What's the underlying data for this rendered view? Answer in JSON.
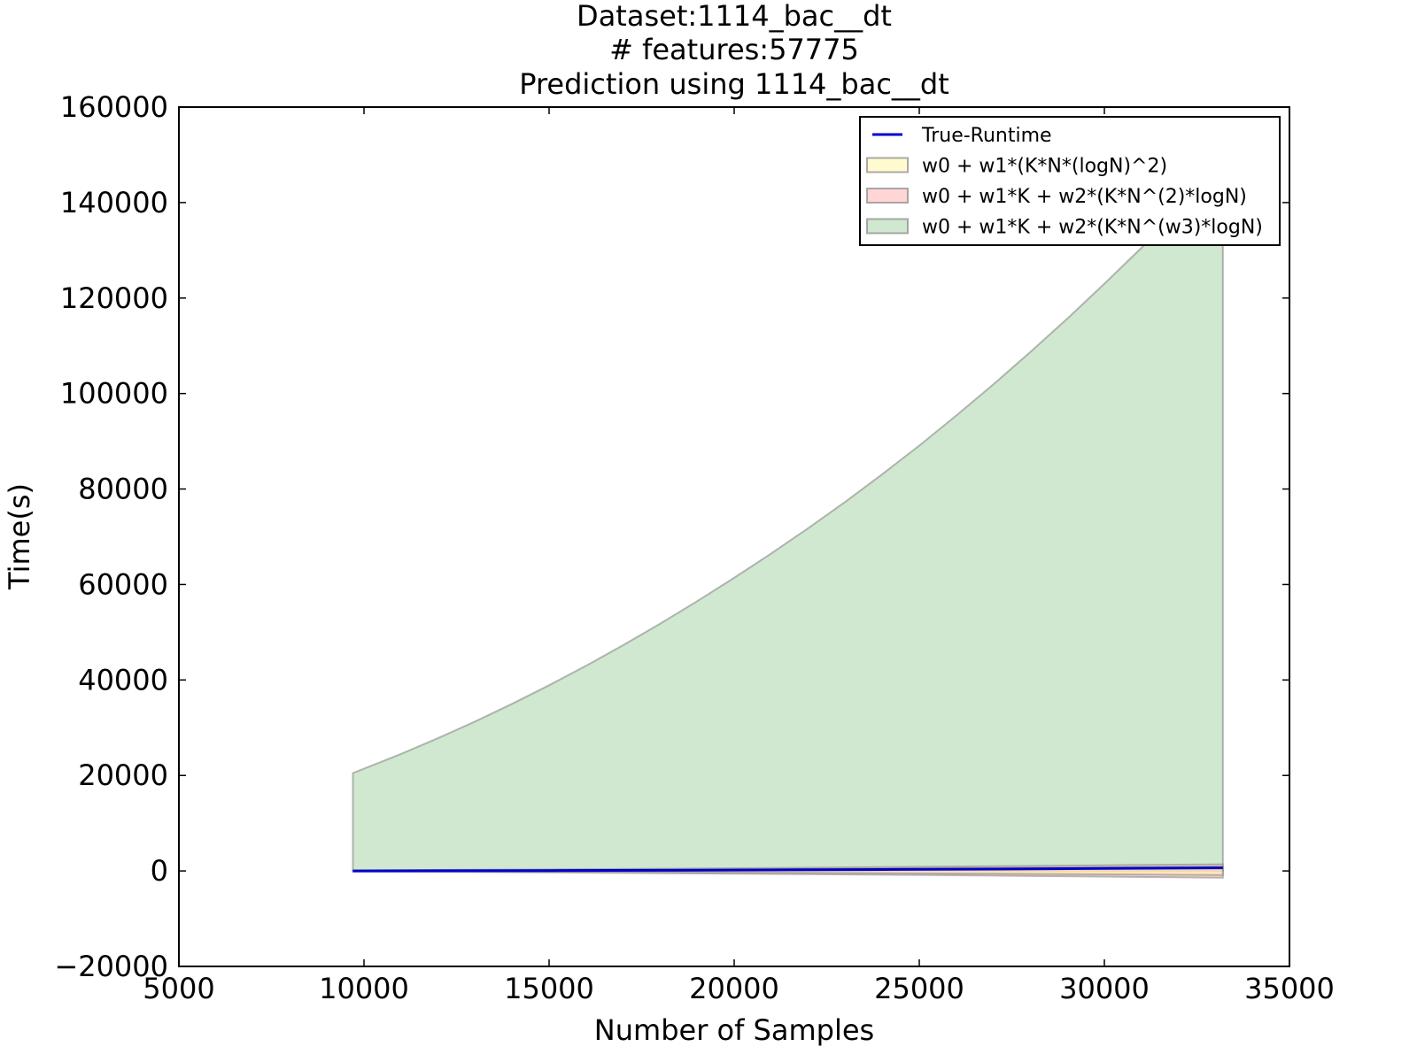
{
  "chart_data": {
    "type": "area",
    "title_lines": [
      "Dataset:1114_bac__dt",
      "# features:57775",
      "Prediction using 1114_bac__dt"
    ],
    "xlabel": "Number of Samples",
    "ylabel": "Time(s)",
    "xlim": [
      5000,
      35000
    ],
    "ylim": [
      -20000,
      160000
    ],
    "xticks": [
      5000,
      10000,
      15000,
      20000,
      25000,
      30000,
      35000
    ],
    "yticks": [
      -20000,
      0,
      20000,
      40000,
      60000,
      80000,
      100000,
      120000,
      140000,
      160000
    ],
    "xtick_labels": [
      "5000",
      "10000",
      "15000",
      "20000",
      "25000",
      "30000",
      "35000"
    ],
    "ytick_labels": [
      "−20000",
      "0",
      "20000",
      "40000",
      "60000",
      "80000",
      "100000",
      "120000",
      "140000",
      "160000"
    ],
    "grid": false,
    "legend_position": "top-right",
    "series": [
      {
        "name": "True-Runtime",
        "kind": "line",
        "color": "#0000cc",
        "x": [
          9700,
          12000,
          15000,
          18000,
          21000,
          24000,
          27000,
          30000,
          33200
        ],
        "y": [
          0,
          30,
          70,
          130,
          200,
          290,
          400,
          520,
          660
        ]
      },
      {
        "name": "w0 + w1*(K*N*(logN)^2)",
        "kind": "band",
        "color": "#fff8a8",
        "x": [
          9700,
          12000,
          15000,
          18000,
          21000,
          24000,
          27000,
          30000,
          33200
        ],
        "upper": [
          50,
          100,
          170,
          260,
          360,
          470,
          590,
          720,
          860
        ],
        "lower": [
          -50,
          -100,
          -170,
          -260,
          -360,
          -470,
          -590,
          -720,
          -860
        ]
      },
      {
        "name": "w0 + w1*K + w2*(K*N^(2)*logN)",
        "kind": "band",
        "color": "#ffb3b3",
        "x": [
          9700,
          12000,
          15000,
          18000,
          21000,
          24000,
          27000,
          30000,
          33200
        ],
        "upper": [
          120,
          200,
          320,
          460,
          620,
          790,
          980,
          1180,
          1400
        ],
        "lower": [
          -120,
          -200,
          -320,
          -460,
          -620,
          -790,
          -980,
          -1180,
          -1400
        ]
      },
      {
        "name": "w0 + w1*K + w2*(K*N^(w3)*logN)",
        "kind": "band",
        "color": "#a8d5a8",
        "x": [
          9700,
          11000,
          12000,
          13000,
          14000,
          15000,
          16000,
          17000,
          18000,
          19000,
          20000,
          21000,
          22000,
          23000,
          24000,
          25000,
          26000,
          27000,
          28000,
          29000,
          30000,
          31000,
          32000,
          33200
        ],
        "upper": [
          20500,
          24500,
          27800,
          31300,
          35000,
          38900,
          43000,
          47300,
          51800,
          56500,
          61400,
          66500,
          71800,
          77300,
          83100,
          89100,
          95400,
          101900,
          108700,
          115700,
          123000,
          130500,
          138300,
          148000
        ],
        "lower": [
          0,
          0,
          0,
          0,
          0,
          0,
          0,
          0,
          0,
          0,
          0,
          0,
          0,
          0,
          0,
          0,
          0,
          0,
          0,
          0,
          0,
          0,
          0,
          0
        ]
      }
    ]
  }
}
